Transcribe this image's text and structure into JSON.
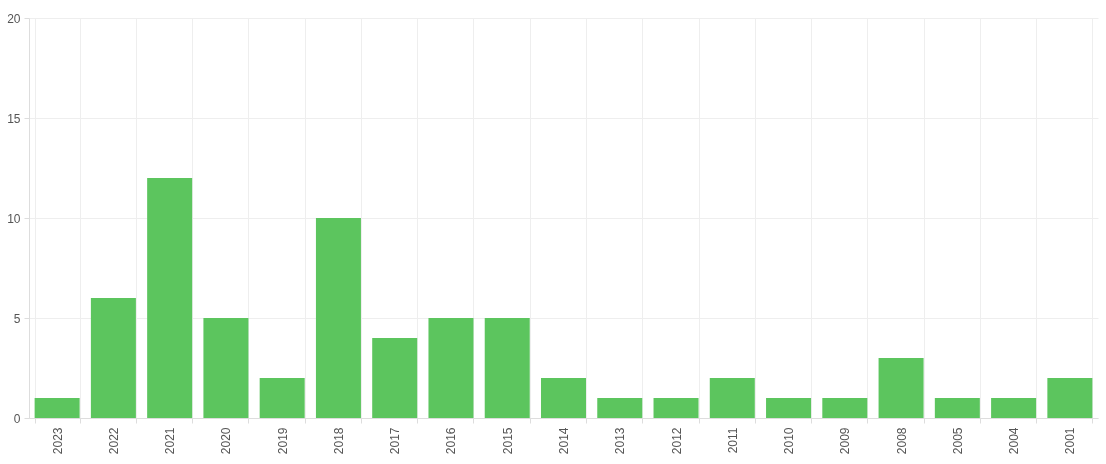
{
  "chart_data": {
    "type": "bar",
    "categories": [
      "2023",
      "2022",
      "2021",
      "2020",
      "2019",
      "2018",
      "2017",
      "2016",
      "2015",
      "2014",
      "2013",
      "2012",
      "2011",
      "2010",
      "2009",
      "2008",
      "2005",
      "2004",
      "2001"
    ],
    "values": [
      1,
      6,
      12,
      5,
      2,
      10,
      4,
      5,
      5,
      2,
      1,
      1,
      2,
      1,
      1,
      3,
      1,
      1,
      2
    ],
    "color": "#5cc55e",
    "ylim": [
      0,
      20
    ],
    "yticks": [
      0,
      5,
      10,
      15,
      20
    ],
    "grid": true
  }
}
